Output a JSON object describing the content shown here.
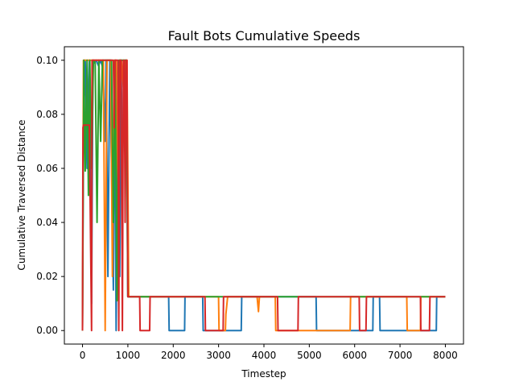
{
  "chart_data": {
    "type": "line",
    "title": "Fault Bots Cumulative Speeds",
    "xlabel": "Timestep",
    "ylabel": "Cumulative Traversed Distance",
    "xlim": [
      -400,
      8400
    ],
    "ylim": [
      -0.005,
      0.105
    ],
    "xticks": [
      0,
      1000,
      2000,
      3000,
      4000,
      5000,
      6000,
      7000,
      8000
    ],
    "xtick_labels": [
      "0",
      "1000",
      "2000",
      "3000",
      "4000",
      "5000",
      "6000",
      "7000",
      "8000"
    ],
    "yticks": [
      0.0,
      0.02,
      0.04,
      0.06,
      0.08,
      0.1
    ],
    "ytick_labels": [
      "0.00",
      "0.02",
      "0.04",
      "0.06",
      "0.08",
      "0.10"
    ],
    "grid": false,
    "legend": "none",
    "series": [
      {
        "color": "#1f77b4",
        "x": [
          0,
          20,
          60,
          100,
          150,
          200,
          230,
          260,
          300,
          350,
          400,
          450,
          500,
          520,
          560,
          600,
          640,
          680,
          710,
          740,
          780,
          820,
          850,
          880,
          920,
          960,
          1000,
          1050,
          1100,
          1900,
          1910,
          2250,
          2260,
          2650,
          2660,
          3500,
          3510,
          5150,
          5160,
          6400,
          6410,
          6550,
          6560,
          7800,
          7810,
          8000
        ],
        "y": [
          0.0,
          0.078,
          0.1,
          0.06,
          0.1,
          0.01,
          0.1,
          0.099,
          0.1,
          0.098,
          0.1,
          0.097,
          0.07,
          0.1,
          0.02,
          0.1,
          0.06,
          0.015,
          0.1,
          0.0,
          0.08,
          0.02,
          0.1,
          0.06,
          0.09,
          0.1,
          0.0125,
          0.0125,
          0.0125,
          0.0125,
          0.0,
          0.0,
          0.0125,
          0.0125,
          0.0,
          0.0,
          0.0125,
          0.0125,
          0.0,
          0.0,
          0.0125,
          0.0125,
          0.0,
          0.0,
          0.0125,
          0.0125
        ]
      },
      {
        "color": "#ff7f0e",
        "x": [
          0,
          20,
          50,
          100,
          140,
          180,
          220,
          260,
          300,
          340,
          380,
          420,
          460,
          500,
          540,
          580,
          620,
          660,
          700,
          740,
          780,
          820,
          860,
          900,
          940,
          980,
          1020,
          1300,
          1500,
          1510,
          2750,
          2760,
          3000,
          3010,
          3150,
          3160,
          3200,
          3210,
          3850,
          3880,
          3900,
          4250,
          4260,
          5900,
          5910,
          7150,
          7160,
          7450,
          7460,
          8000
        ],
        "y": [
          0.0,
          0.1,
          0.1,
          0.1,
          0.1,
          0.1,
          0.1,
          0.1,
          0.1,
          0.1,
          0.1,
          0.1,
          0.1,
          0.0,
          0.1,
          0.1,
          0.1,
          0.02,
          0.1,
          0.1,
          0.05,
          0.1,
          0.1,
          0.09,
          0.1,
          0.1,
          0.0125,
          0.0125,
          0.0125,
          0.0125,
          0.0125,
          0.0125,
          0.0125,
          0.0,
          0.0,
          0.006,
          0.0125,
          0.0125,
          0.0125,
          0.007,
          0.0125,
          0.0125,
          0.0,
          0.0,
          0.0125,
          0.0125,
          0.0,
          0.0,
          0.0125,
          0.0125
        ]
      },
      {
        "color": "#2ca02c",
        "x": [
          0,
          30,
          60,
          100,
          130,
          160,
          200,
          240,
          280,
          320,
          360,
          400,
          440,
          480,
          520,
          560,
          600,
          640,
          680,
          720,
          760,
          800,
          840,
          880,
          920,
          960,
          1000,
          1250,
          1260,
          4400,
          4410,
          8000
        ],
        "y": [
          0.0,
          0.1,
          0.059,
          0.1,
          0.05,
          0.1,
          0.06,
          0.1,
          0.099,
          0.04,
          0.1,
          0.07,
          0.1,
          0.1,
          0.1,
          0.1,
          0.1,
          0.1,
          0.04,
          0.1,
          0.011,
          0.1,
          0.1,
          0.1,
          0.1,
          0.1,
          0.0125,
          0.0125,
          0.0125,
          0.0125,
          0.0125,
          0.0125
        ]
      },
      {
        "color": "#d62728",
        "x": [
          0,
          10,
          20,
          150,
          200,
          210,
          220,
          500,
          510,
          640,
          660,
          680,
          700,
          720,
          750,
          780,
          800,
          820,
          850,
          880,
          900,
          920,
          940,
          960,
          980,
          1000,
          1260,
          1270,
          1480,
          1490,
          2700,
          2710,
          3100,
          3110,
          3150,
          3160,
          4300,
          4310,
          4750,
          4760,
          6100,
          6110,
          6250,
          6260,
          7450,
          7460,
          7650,
          7660,
          8000
        ],
        "y": [
          0.0,
          0.075,
          0.076,
          0.076,
          0.0,
          0.1,
          0.1,
          0.1,
          0.1,
          0.1,
          0.1,
          0.1,
          0.075,
          0.1,
          0.1,
          0.1,
          0.0,
          0.1,
          0.1,
          0.0,
          0.1,
          0.1,
          0.04,
          0.1,
          0.1,
          0.0125,
          0.0125,
          0.0,
          0.0,
          0.0125,
          0.0125,
          0.0,
          0.0,
          0.0125,
          0.0125,
          0.0125,
          0.0125,
          0.0,
          0.0,
          0.0125,
          0.0125,
          0.0,
          0.0,
          0.0125,
          0.0125,
          0.0,
          0.0,
          0.0125,
          0.0125
        ]
      }
    ]
  }
}
